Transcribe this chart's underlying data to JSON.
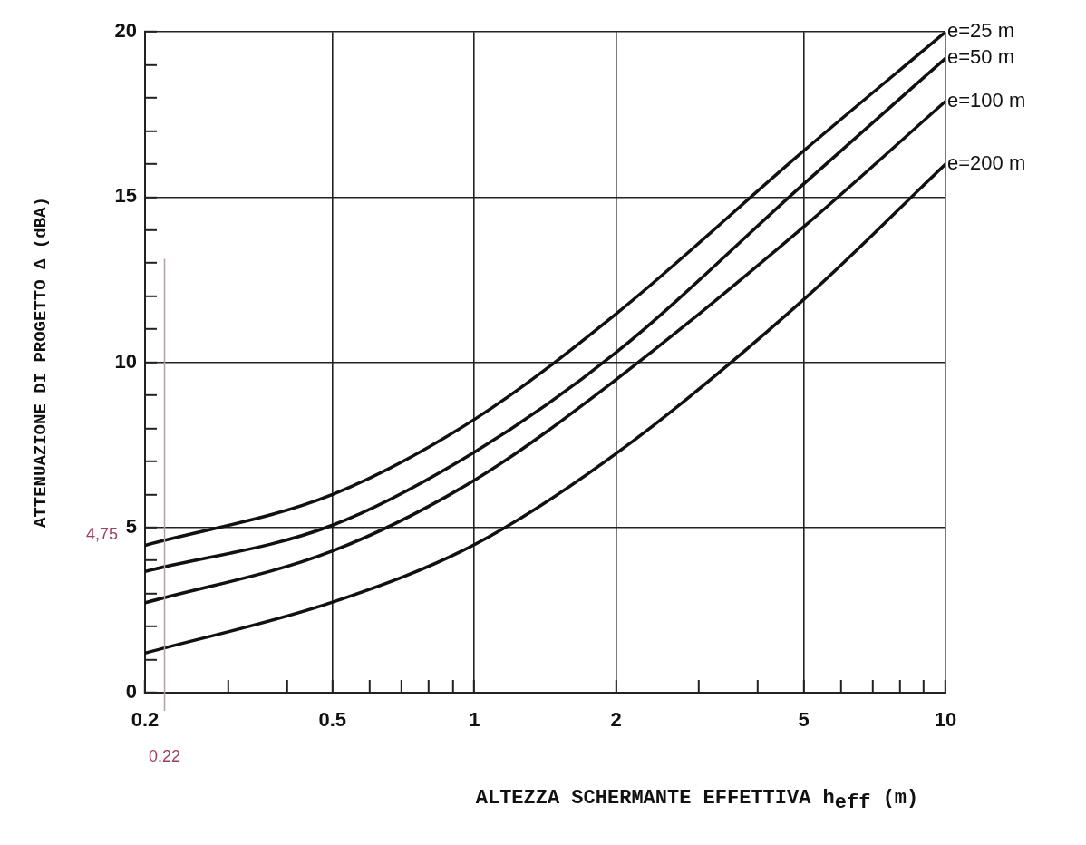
{
  "chart_data": {
    "type": "line",
    "xlabel": "ALTEZZA SCHERMANTE EFFETTIVA h$_{eff}$ (m)",
    "ylabel": "ATTENUAZIONE DI PROGETTO Δ (dBA)",
    "log": "x",
    "grid": true,
    "legend": false,
    "marker": "none",
    "line_style": "solid",
    "xlim": [
      0.2,
      10
    ],
    "ylim": [
      0,
      20
    ],
    "xticks": [
      0.2,
      {
        "value": 0.3,
        "label": null
      },
      {
        "value": 0.4,
        "label": null
      },
      0.5,
      {
        "value": 0.6,
        "label": null
      },
      {
        "value": 0.7,
        "label": null
      },
      {
        "value": 0.8,
        "label": null
      },
      {
        "value": 0.9,
        "label": null
      },
      1,
      2,
      {
        "value": 3,
        "label": null
      },
      {
        "value": 4,
        "label": null
      },
      5,
      {
        "value": 6,
        "label": null
      },
      {
        "value": 7,
        "label": null
      },
      {
        "value": 8,
        "label": null
      },
      {
        "value": 9,
        "label": null
      },
      10
    ],
    "yticks": [
      0,
      {
        "value": 1,
        "label": null
      },
      {
        "value": 2,
        "label": null
      },
      {
        "value": 3,
        "label": null
      },
      {
        "value": 4,
        "label": null
      },
      5,
      {
        "value": 6,
        "label": null
      },
      {
        "value": 7,
        "label": null
      },
      {
        "value": 8,
        "label": null
      },
      {
        "value": 9,
        "label": null
      },
      10,
      {
        "value": 11,
        "label": null
      },
      {
        "value": 12,
        "label": null
      },
      {
        "value": 13,
        "label": null
      },
      {
        "value": 14,
        "label": null
      },
      15,
      {
        "value": 16,
        "label": null
      },
      {
        "value": 17,
        "label": null
      },
      {
        "value": 18,
        "label": null
      },
      {
        "value": 19,
        "label": null
      },
      20
    ],
    "x": [
      0.2,
      0.5,
      1,
      2,
      5,
      10
    ],
    "series": [
      {
        "name": "e=25 m",
        "color": "#111111",
        "values": [
          4.46,
          6.0,
          8.27,
          11.47,
          16.4,
          20
        ]
      },
      {
        "name": "e=50 m",
        "color": "#111111",
        "values": [
          3.67,
          5.07,
          7.28,
          10.3,
          15.4,
          19.2
        ]
      },
      {
        "name": "e=100 m",
        "color": "#111111",
        "values": [
          2.72,
          4.29,
          6.43,
          9.48,
          14.1,
          17.9
        ]
      },
      {
        "name": "e=200 m",
        "color": "#111111",
        "values": [
          1.2,
          2.74,
          4.48,
          7.24,
          11.9,
          16.0
        ]
      }
    ],
    "ref_lines": [
      {
        "axis": "x",
        "value": 0.22,
        "label": "0.22",
        "color": "#b0a0a8"
      }
    ],
    "annotations": [
      "4,75"
    ]
  }
}
